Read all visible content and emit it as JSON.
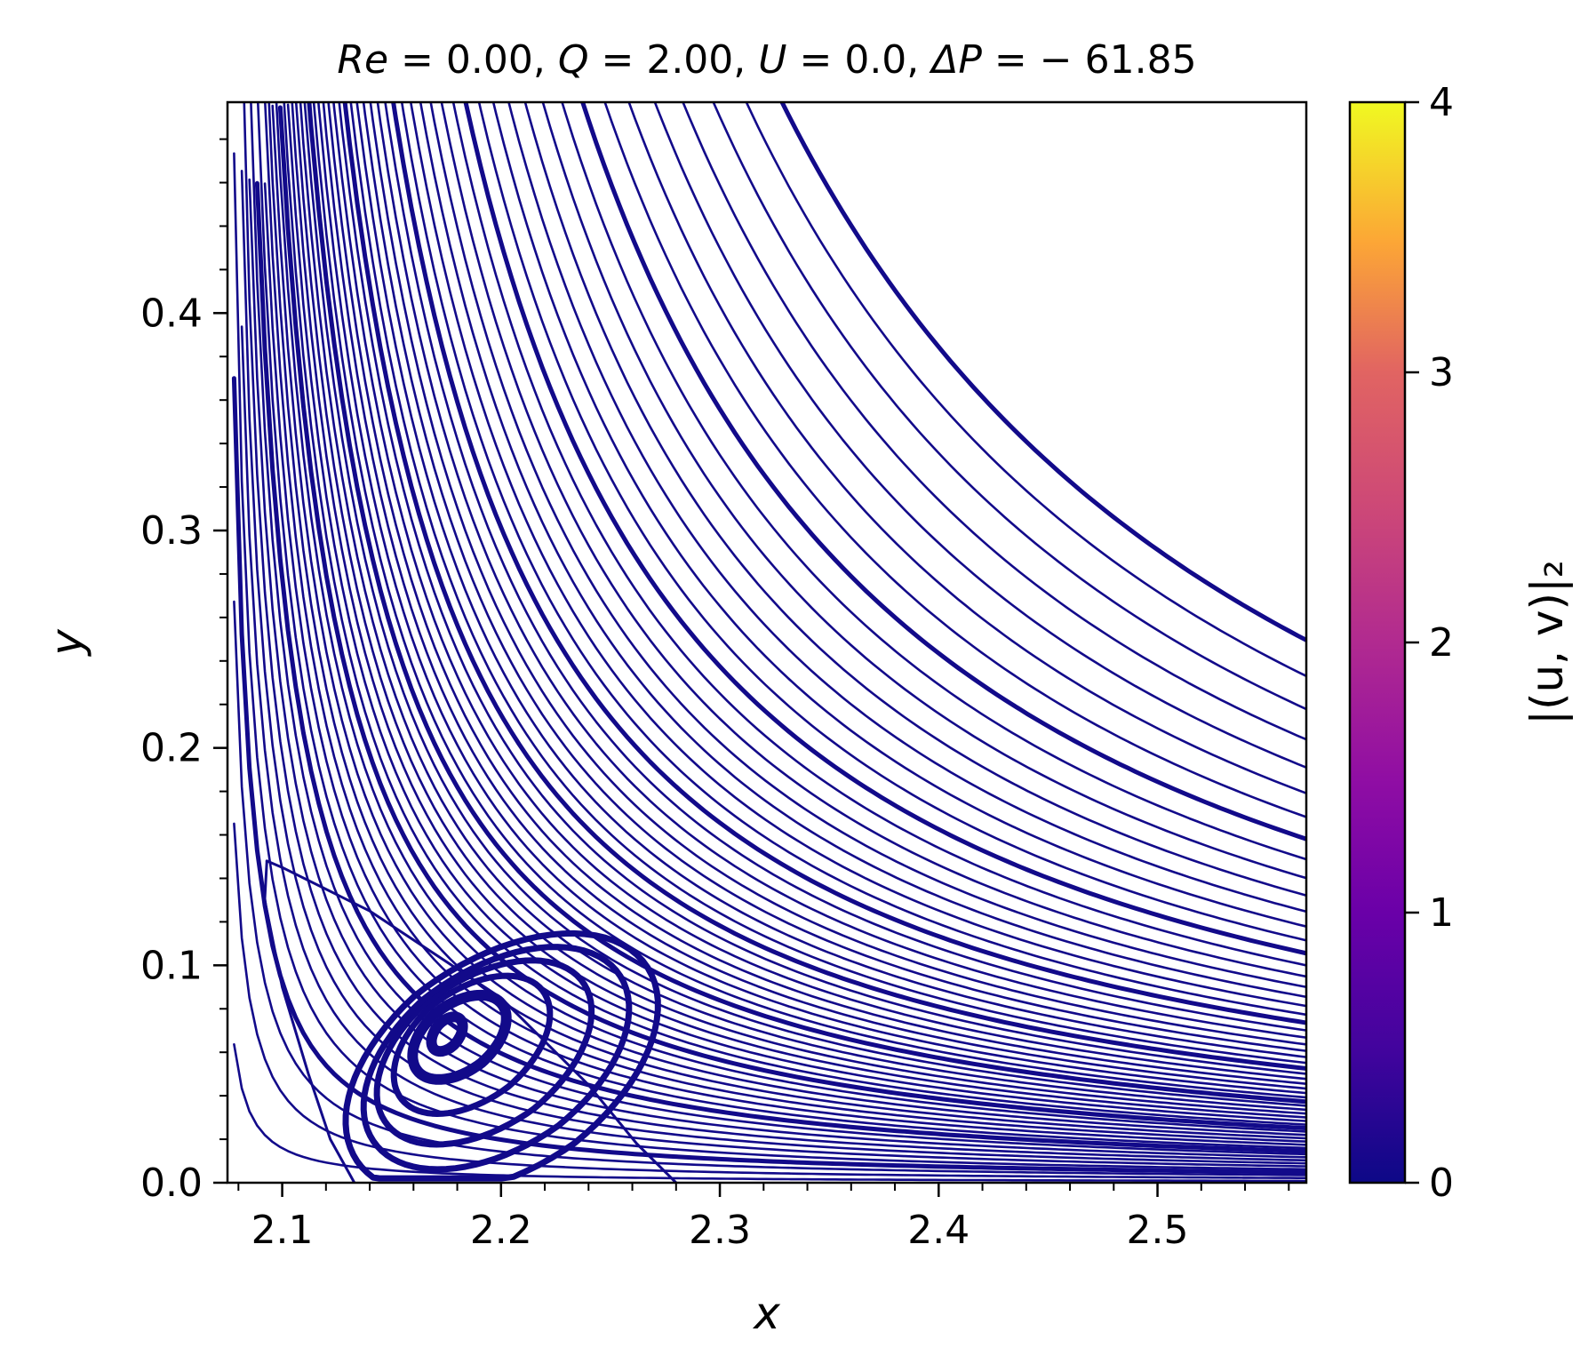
{
  "chart_data": {
    "type": "streamplot",
    "title": "Re = 0.00, Q = 2.00, U = 0.0, ΔP = −61.85",
    "title_parts": [
      {
        "text": "Re",
        "italic": true
      },
      {
        "text": " = 0.00, ",
        "italic": false
      },
      {
        "text": "Q",
        "italic": true
      },
      {
        "text": " = 2.00, ",
        "italic": false
      },
      {
        "text": "U",
        "italic": true
      },
      {
        "text": " = 0.0, ",
        "italic": false
      },
      {
        "text": "ΔP",
        "italic": true
      },
      {
        "text": " = − 61.85",
        "italic": false
      }
    ],
    "xlabel": "x",
    "ylabel": "y",
    "xlim": [
      2.075,
      2.568
    ],
    "ylim": [
      0.0,
      0.497
    ],
    "xticks": [
      2.1,
      2.2,
      2.3,
      2.4,
      2.5
    ],
    "xtick_labels": [
      "2.1",
      "2.2",
      "2.3",
      "2.4",
      "2.5"
    ],
    "yticks": [
      0.0,
      0.1,
      0.2,
      0.3,
      0.4
    ],
    "ytick_labels": [
      "0.0",
      "0.1",
      "0.2",
      "0.3",
      "0.4"
    ],
    "grid": false,
    "colormap": "plasma",
    "colorbar": {
      "label": "|(u, v)|₂",
      "min": 0,
      "max": 4,
      "ticks": [
        0,
        1,
        2,
        3,
        4
      ],
      "tick_labels": [
        "0",
        "1",
        "2",
        "3",
        "4"
      ]
    },
    "line_color": "#120a8a",
    "eddy_center": [
      2.175,
      0.065
    ],
    "eddy_loops": [
      {
        "cx": 2.175,
        "cy": 0.068,
        "rx": 0.008,
        "ry": 0.009
      },
      {
        "cx": 2.18,
        "cy": 0.066,
        "rx": 0.024,
        "ry": 0.022
      },
      {
        "cx": 2.185,
        "cy": 0.062,
        "rx": 0.04,
        "ry": 0.036
      },
      {
        "cx": 2.19,
        "cy": 0.058,
        "rx": 0.055,
        "ry": 0.048
      },
      {
        "cx": 2.195,
        "cy": 0.055,
        "rx": 0.068,
        "ry": 0.058
      },
      {
        "cx": 2.197,
        "cy": 0.052,
        "rx": 0.08,
        "ry": 0.068
      }
    ],
    "outer_streamline_count": 60
  }
}
